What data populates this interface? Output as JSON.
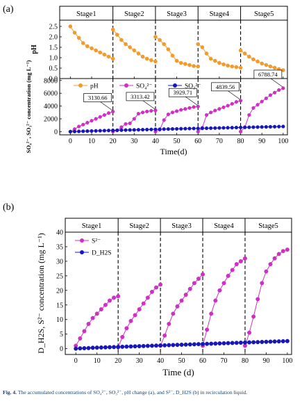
{
  "caption": {
    "label": "Fig. 4.",
    "text": "The accumulated concentrations of SO₄²⁻, SO₃²⁻, pH change (a), and S²⁻, D_H2S (b) in recirculation liquid."
  },
  "colors": {
    "orange": "#f39a2c",
    "magenta": "#d02fc6",
    "blue": "#1717b8",
    "stage_fill": "#ffffff"
  },
  "chart_data": [
    {
      "panel": "(a)",
      "type": "line",
      "stages": [
        "Stage1",
        "Stage2",
        "Stage3",
        "Stage4",
        "Stage5"
      ],
      "stage_boundaries": [
        20,
        40,
        60,
        80
      ],
      "xlabel": "Time(d)",
      "xlim": [
        -5,
        102
      ],
      "xticks": [
        "0",
        "10",
        "20",
        "30",
        "40",
        "50",
        "60",
        "70",
        "80",
        "90",
        "100"
      ],
      "top": {
        "ylabel": "pH",
        "ylim": [
          0,
          2.8
        ],
        "yticks": [
          "0.0",
          "0.5",
          "1.0",
          "1.5",
          "2.0",
          "2.5"
        ],
        "series": [
          {
            "name": "pH",
            "color": "orange",
            "segments": [
              {
                "x": [
                  0,
                  2,
                  4,
                  6,
                  8,
                  10,
                  12,
                  14,
                  16,
                  18,
                  20
                ],
                "y": [
                  2.5,
                  2.2,
                  1.95,
                  1.7,
                  1.55,
                  1.45,
                  1.35,
                  1.25,
                  1.15,
                  1.05,
                  0.95
                ]
              },
              {
                "x": [
                  20,
                  22,
                  24,
                  26,
                  28,
                  30,
                  32,
                  34,
                  36,
                  38,
                  40
                ],
                "y": [
                  2.35,
                  2.1,
                  1.85,
                  1.65,
                  1.5,
                  1.35,
                  1.2,
                  1.05,
                  0.95,
                  0.88,
                  0.82
                ]
              },
              {
                "x": [
                  40,
                  42,
                  44,
                  46,
                  48,
                  50,
                  52,
                  54,
                  56,
                  58,
                  60
                ],
                "y": [
                  2.0,
                  1.85,
                  1.65,
                  1.4,
                  1.1,
                  0.85,
                  0.75,
                  0.7,
                  0.65,
                  0.6,
                  0.58
                ]
              },
              {
                "x": [
                  60,
                  62,
                  64,
                  66,
                  68,
                  70,
                  72,
                  74,
                  76,
                  78,
                  80
                ],
                "y": [
                  1.65,
                  1.5,
                  1.2,
                  0.95,
                  0.85,
                  0.75,
                  0.68,
                  0.62,
                  0.58,
                  0.55,
                  0.52
                ]
              },
              {
                "x": [
                  80,
                  82,
                  84,
                  86,
                  88,
                  90,
                  92,
                  94,
                  96,
                  98,
                  100
                ],
                "y": [
                  1.35,
                  1.2,
                  1.05,
                  0.92,
                  0.82,
                  0.72,
                  0.65,
                  0.58,
                  0.52,
                  0.45,
                  0.4
                ]
              }
            ]
          }
        ]
      },
      "bottom": {
        "ylabel": "SO₄²⁻, SO₃²⁻ concentration (mg L⁻¹)",
        "ylim": [
          -500,
          8300
        ],
        "yticks": [
          "0",
          "2000",
          "4000",
          "6000",
          "8000"
        ],
        "legend": [
          "pH",
          "SO₄²⁻",
          "SO₃²⁻"
        ],
        "annotations": [
          {
            "text": "3130.66",
            "x": 20,
            "y": 3130.66
          },
          {
            "text": "3313.42",
            "x": 40,
            "y": 3313.42
          },
          {
            "text": "3929.71",
            "x": 60,
            "y": 3929.71
          },
          {
            "text": "4839.56",
            "x": 80,
            "y": 4839.56
          },
          {
            "text": "6788.74",
            "x": 100,
            "y": 6788.74
          }
        ],
        "series": [
          {
            "name": "SO₄²⁻",
            "color": "magenta",
            "segments": [
              {
                "x": [
                  0,
                  2,
                  4,
                  6,
                  8,
                  10,
                  12,
                  14,
                  16,
                  18,
                  20
                ],
                "y": [
                  0,
                  400,
                  800,
                  1100,
                  1400,
                  1700,
                  2000,
                  2300,
                  2600,
                  2900,
                  3130.66
                ]
              },
              {
                "x": [
                  20,
                  22,
                  24,
                  26,
                  28,
                  30,
                  32,
                  34,
                  36,
                  38,
                  40
                ],
                "y": [
                  0,
                  200,
                  700,
                  1200,
                  1300,
                  2000,
                  2800,
                  3000,
                  3150,
                  3250,
                  3313.42
                ]
              },
              {
                "x": [
                  40,
                  42,
                  44,
                  46,
                  48,
                  50,
                  52,
                  54,
                  56,
                  58,
                  60
                ],
                "y": [
                  0,
                  300,
                  1800,
                  2700,
                  3000,
                  3200,
                  3400,
                  3550,
                  3700,
                  3850,
                  3929.71
                ]
              },
              {
                "x": [
                  60,
                  62,
                  64,
                  66,
                  68,
                  70,
                  72,
                  74,
                  76,
                  78,
                  80
                ],
                "y": [
                  0,
                  600,
                  2600,
                  3000,
                  3300,
                  3550,
                  3800,
                  4050,
                  4350,
                  4650,
                  4839.56
                ]
              },
              {
                "x": [
                  80,
                  82,
                  84,
                  86,
                  88,
                  90,
                  92,
                  94,
                  96,
                  98,
                  100
                ],
                "y": [
                  0,
                  700,
                  2600,
                  3700,
                  4200,
                  4700,
                  5200,
                  5700,
                  6100,
                  6500,
                  6788.74
                ]
              }
            ]
          },
          {
            "name": "SO₃²⁻",
            "color": "blue",
            "segments": [
              {
                "x": [
                  0,
                  2,
                  4,
                  6,
                  8,
                  10,
                  12,
                  14,
                  16,
                  18,
                  20,
                  22,
                  24,
                  26,
                  28,
                  30,
                  32,
                  34,
                  36,
                  38,
                  40,
                  42,
                  44,
                  46,
                  48,
                  50,
                  52,
                  54,
                  56,
                  58,
                  60,
                  62,
                  64,
                  66,
                  68,
                  70,
                  72,
                  74,
                  76,
                  78,
                  80,
                  82,
                  84,
                  86,
                  88,
                  90,
                  92,
                  94,
                  96,
                  98,
                  100
                ],
                "y": [
                  0,
                  20,
                  40,
                  60,
                  80,
                  100,
                  120,
                  140,
                  160,
                  180,
                  200,
                  215,
                  230,
                  245,
                  260,
                  275,
                  290,
                  305,
                  320,
                  340,
                  360,
                  375,
                  390,
                  405,
                  420,
                  435,
                  450,
                  465,
                  480,
                  495,
                  500,
                  515,
                  530,
                  545,
                  560,
                  575,
                  590,
                  605,
                  620,
                  635,
                  650,
                  665,
                  680,
                  695,
                  710,
                  725,
                  740,
                  755,
                  770,
                  785,
                  800
                ]
              }
            ]
          }
        ]
      }
    },
    {
      "panel": "(b)",
      "type": "line",
      "stages": [
        "Stage1",
        "Stage2",
        "Stage3",
        "Stage4",
        "Stage5"
      ],
      "stage_boundaries": [
        20,
        40,
        60,
        80
      ],
      "xlabel": "Time (d)",
      "xlim": [
        -5,
        102
      ],
      "xticks": [
        "0",
        "10",
        "20",
        "30",
        "40",
        "50",
        "60",
        "70",
        "80",
        "90",
        "100"
      ],
      "ylabel": "D_H2S, S²⁻ concentration (mg L⁻¹)",
      "ylim": [
        -2,
        40
      ],
      "yticks": [
        "0",
        "5",
        "10",
        "15",
        "20",
        "25",
        "30",
        "35",
        "40"
      ],
      "legend": [
        "S²⁻",
        "D_H2S"
      ],
      "series": [
        {
          "name": "S²⁻",
          "color": "magenta",
          "segments": [
            {
              "x": [
                0,
                2,
                4,
                6,
                8,
                10,
                12,
                14,
                16,
                18,
                20
              ],
              "y": [
                1,
                3.5,
                6,
                8.5,
                10.5,
                12,
                13.5,
                15,
                16.5,
                17.5,
                18
              ]
            },
            {
              "x": [
                20,
                22,
                24,
                26,
                28,
                30,
                32,
                34,
                36,
                38,
                40
              ],
              "y": [
                0.5,
                4,
                7,
                9.5,
                11.5,
                13.5,
                15.5,
                17.5,
                19.5,
                21,
                22
              ]
            },
            {
              "x": [
                40,
                42,
                44,
                46,
                48,
                50,
                52,
                54,
                56,
                58,
                60
              ],
              "y": [
                1,
                4.5,
                8.5,
                12,
                14.5,
                16.5,
                18.5,
                20.5,
                22.5,
                24,
                25.5
              ]
            },
            {
              "x": [
                60,
                62,
                64,
                66,
                68,
                70,
                72,
                74,
                76,
                78,
                80
              ],
              "y": [
                1,
                6.5,
                12,
                16.5,
                20,
                22.5,
                25,
                27,
                29,
                30,
                31
              ]
            },
            {
              "x": [
                80,
                82,
                84,
                86,
                88,
                90,
                92,
                94,
                96,
                98,
                100
              ],
              "y": [
                1,
                5.5,
                11,
                17,
                22.5,
                26.5,
                29,
                31,
                32.5,
                33.5,
                34
              ]
            }
          ]
        },
        {
          "name": "D_H2S",
          "color": "blue",
          "segments": [
            {
              "x": [
                0,
                2,
                4,
                6,
                8,
                10,
                12,
                14,
                16,
                18,
                20,
                22,
                24,
                26,
                28,
                30,
                32,
                34,
                36,
                38,
                40,
                42,
                44,
                46,
                48,
                50,
                52,
                54,
                56,
                58,
                60,
                62,
                64,
                66,
                68,
                70,
                72,
                74,
                76,
                78,
                80,
                82,
                84,
                86,
                88,
                90,
                92,
                94,
                96,
                98,
                100
              ],
              "y": [
                0,
                0.1,
                0.15,
                0.2,
                0.3,
                0.35,
                0.4,
                0.45,
                0.5,
                0.55,
                0.6,
                0.65,
                0.7,
                0.75,
                0.8,
                0.85,
                0.9,
                0.95,
                1.0,
                1.05,
                1.1,
                1.15,
                1.2,
                1.25,
                1.3,
                1.35,
                1.4,
                1.45,
                1.5,
                1.55,
                1.6,
                1.65,
                1.7,
                1.75,
                1.8,
                1.85,
                1.9,
                1.95,
                2.0,
                2.05,
                2.1,
                2.15,
                2.2,
                2.25,
                2.3,
                2.35,
                2.4,
                2.45,
                2.5,
                2.55,
                2.6
              ]
            }
          ]
        }
      ]
    }
  ]
}
